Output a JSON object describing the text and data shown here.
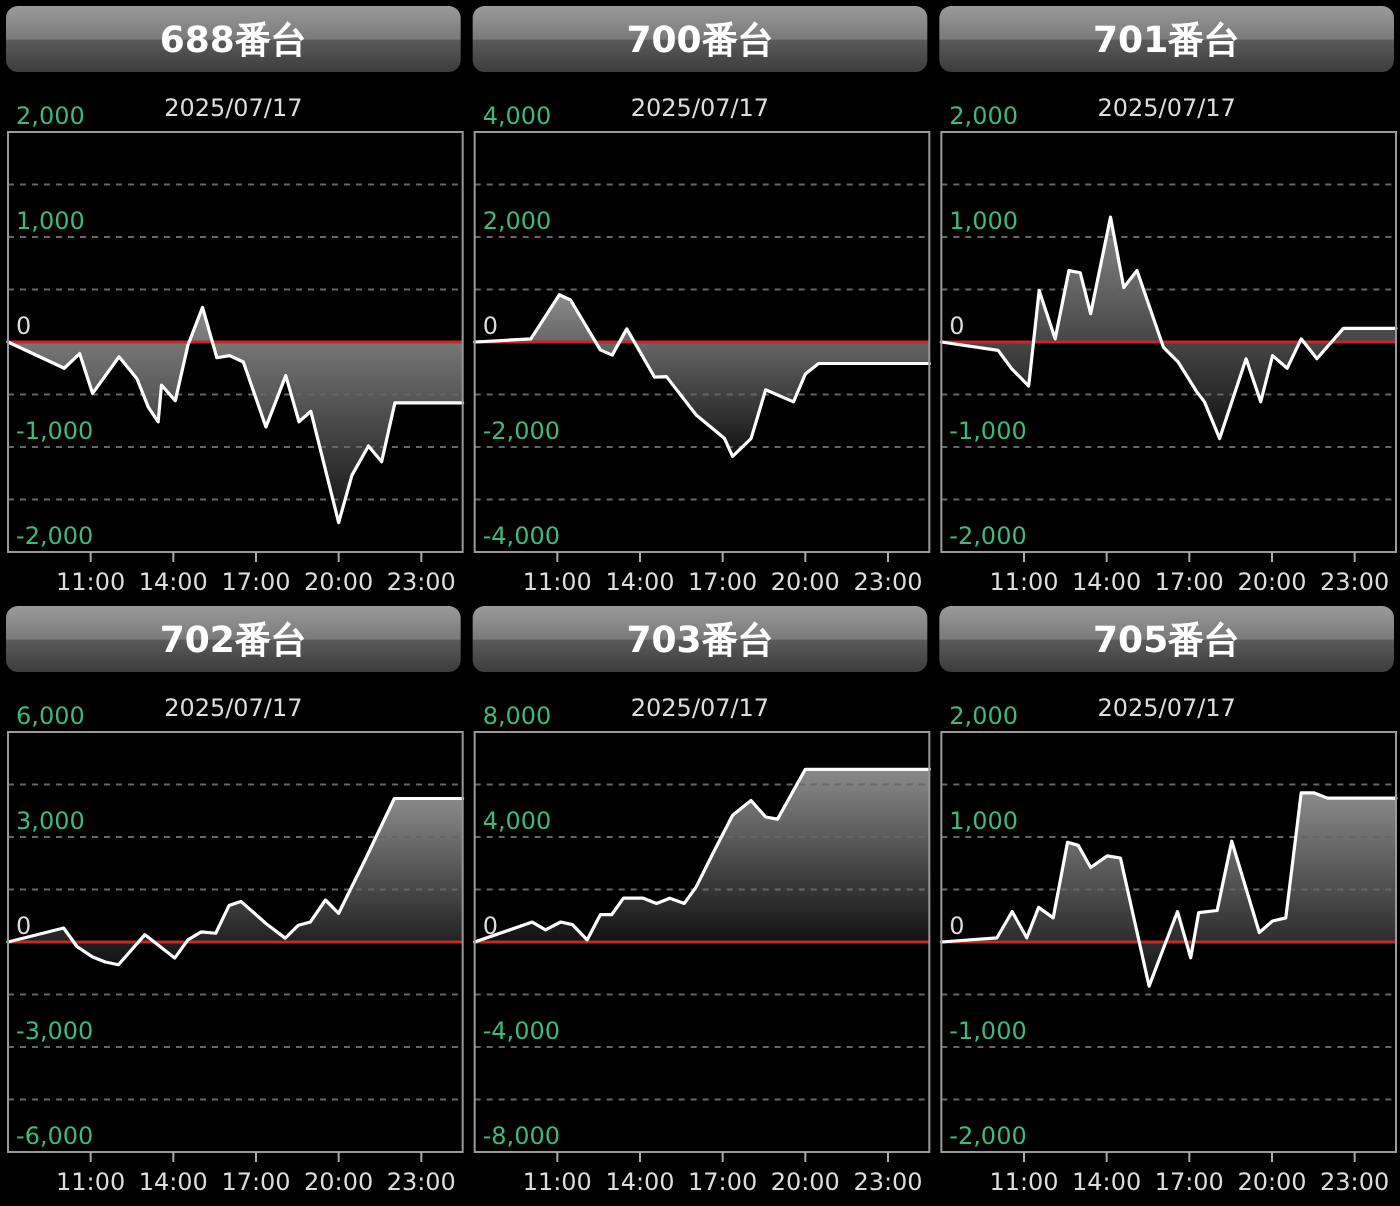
{
  "chart_data": [
    {
      "type": "area",
      "title": "688番台",
      "subtitle": "2025/07/17",
      "color": "#ffffff",
      "grid": "y",
      "xlim": [
        8,
        24.5
      ],
      "xticks": [
        {
          "value": 11,
          "label": "11:00"
        },
        {
          "value": 14,
          "label": "14:00"
        },
        {
          "value": 17,
          "label": "17:00"
        },
        {
          "value": 20,
          "label": "20:00"
        },
        {
          "value": 23,
          "label": "23:00"
        }
      ],
      "ylim": [
        -2000,
        2000
      ],
      "yticks": [
        {
          "value": 2000,
          "label": "2,000"
        },
        {
          "value": 1500,
          "label": null
        },
        {
          "value": 1000,
          "label": "1,000"
        },
        {
          "value": 500,
          "label": null
        },
        {
          "value": 0,
          "label": "0"
        },
        {
          "value": -500,
          "label": null
        },
        {
          "value": -1000,
          "label": "-1,000"
        },
        {
          "value": -1500,
          "label": null
        },
        {
          "value": -2000,
          "label": "-2,000"
        }
      ],
      "ref_lines": [
        {
          "axis": "y",
          "value": 0,
          "color": "#c62828"
        }
      ],
      "x": [
        8,
        10.04,
        10.6,
        11.07,
        12.03,
        12.68,
        13.09,
        13.45,
        13.57,
        14.07,
        14.53,
        15.06,
        15.58,
        16.04,
        16.54,
        17.36,
        18.08,
        18.56,
        18.99,
        20.0,
        20.48,
        21.08,
        21.56,
        22.04,
        24.5
      ],
      "values": [
        0,
        -250,
        -110,
        -490,
        -140,
        -350,
        -620,
        -760,
        -410,
        -560,
        -30,
        330,
        -150,
        -130,
        -190,
        -810,
        -320,
        -760,
        -660,
        -1720,
        -1270,
        -990,
        -1140,
        -580,
        -580
      ]
    },
    {
      "type": "area",
      "title": "700番台",
      "subtitle": "2025/07/17",
      "color": "#ffffff",
      "grid": "y",
      "xlim": [
        8,
        24.5
      ],
      "xticks": [
        {
          "value": 11,
          "label": "11:00"
        },
        {
          "value": 14,
          "label": "14:00"
        },
        {
          "value": 17,
          "label": "17:00"
        },
        {
          "value": 20,
          "label": "20:00"
        },
        {
          "value": 23,
          "label": "23:00"
        }
      ],
      "ylim": [
        -4000,
        4000
      ],
      "yticks": [
        {
          "value": 4000,
          "label": "4,000"
        },
        {
          "value": 3000,
          "label": null
        },
        {
          "value": 2000,
          "label": "2,000"
        },
        {
          "value": 1000,
          "label": null
        },
        {
          "value": 0,
          "label": "0"
        },
        {
          "value": -1000,
          "label": null
        },
        {
          "value": -2000,
          "label": "-2,000"
        },
        {
          "value": -3000,
          "label": null
        },
        {
          "value": -4000,
          "label": "-4,000"
        }
      ],
      "ref_lines": [
        {
          "axis": "y",
          "value": 0,
          "color": "#c62828"
        }
      ],
      "x": [
        8,
        10.04,
        11.07,
        11.48,
        12.56,
        12.99,
        13.52,
        14.53,
        14.96,
        16.04,
        17.07,
        17.36,
        18.03,
        18.56,
        19.57,
        20.0,
        20.48,
        24.5
      ],
      "values": [
        0,
        60,
        900,
        800,
        -150,
        -250,
        250,
        -670,
        -660,
        -1390,
        -1840,
        -2180,
        -1840,
        -910,
        -1140,
        -610,
        -410,
        -410
      ]
    },
    {
      "type": "area",
      "title": "701番台",
      "subtitle": "2025/07/17",
      "color": "#ffffff",
      "grid": "y",
      "xlim": [
        8,
        24.5
      ],
      "xticks": [
        {
          "value": 11,
          "label": "11:00"
        },
        {
          "value": 14,
          "label": "14:00"
        },
        {
          "value": 17,
          "label": "17:00"
        },
        {
          "value": 20,
          "label": "20:00"
        },
        {
          "value": 23,
          "label": "23:00"
        }
      ],
      "ylim": [
        -2000,
        2000
      ],
      "yticks": [
        {
          "value": 2000,
          "label": "2,000"
        },
        {
          "value": 1500,
          "label": null
        },
        {
          "value": 1000,
          "label": "1,000"
        },
        {
          "value": 500,
          "label": null
        },
        {
          "value": 0,
          "label": "0"
        },
        {
          "value": -500,
          "label": null
        },
        {
          "value": -1000,
          "label": "-1,000"
        },
        {
          "value": -1500,
          "label": null
        },
        {
          "value": -2000,
          "label": "-2,000"
        }
      ],
      "ref_lines": [
        {
          "axis": "y",
          "value": 0,
          "color": "#c62828"
        }
      ],
      "x": [
        8,
        10.06,
        10.54,
        11.17,
        11.55,
        12.13,
        12.63,
        13.04,
        13.42,
        14.14,
        14.62,
        15.1,
        16.06,
        16.59,
        17.26,
        17.55,
        18.1,
        19.06,
        19.59,
        20.02,
        20.55,
        21.06,
        21.63,
        22.59,
        24.5
      ],
      "values": [
        0,
        -80,
        -250,
        -420,
        490,
        30,
        680,
        660,
        270,
        1190,
        520,
        680,
        -50,
        -190,
        -470,
        -570,
        -920,
        -160,
        -570,
        -130,
        -250,
        30,
        -160,
        130,
        130
      ]
    },
    {
      "type": "area",
      "title": "702番台",
      "subtitle": "2025/07/17",
      "color": "#ffffff",
      "grid": "y",
      "xlim": [
        8,
        24.5
      ],
      "xticks": [
        {
          "value": 11,
          "label": "11:00"
        },
        {
          "value": 14,
          "label": "14:00"
        },
        {
          "value": 17,
          "label": "17:00"
        },
        {
          "value": 20,
          "label": "20:00"
        },
        {
          "value": 23,
          "label": "23:00"
        }
      ],
      "ylim": [
        -6000,
        6000
      ],
      "yticks": [
        {
          "value": 6000,
          "label": "6,000"
        },
        {
          "value": 4500,
          "label": null
        },
        {
          "value": 3000,
          "label": "3,000"
        },
        {
          "value": 1500,
          "label": null
        },
        {
          "value": 0,
          "label": "0"
        },
        {
          "value": -1500,
          "label": null
        },
        {
          "value": -3000,
          "label": "-3,000"
        },
        {
          "value": -4500,
          "label": null
        },
        {
          "value": -6000,
          "label": "-6,000"
        }
      ],
      "ref_lines": [
        {
          "axis": "y",
          "value": 0,
          "color": "#c62828"
        }
      ],
      "x": [
        8,
        10.02,
        10.5,
        11.05,
        11.53,
        12.01,
        12.97,
        14.05,
        14.53,
        15.01,
        15.54,
        16.02,
        16.45,
        17.36,
        18.06,
        18.54,
        18.97,
        19.52,
        20.0,
        21.01,
        22.02,
        24.5
      ],
      "values": [
        0,
        400,
        -130,
        -420,
        -570,
        -650,
        210,
        -460,
        60,
        290,
        250,
        1040,
        1160,
        530,
        110,
        480,
        570,
        1200,
        820,
        2430,
        4100,
        4100
      ]
    },
    {
      "type": "area",
      "title": "703番台",
      "subtitle": "2025/07/17",
      "color": "#ffffff",
      "grid": "y",
      "xlim": [
        8,
        24.5
      ],
      "xticks": [
        {
          "value": 11,
          "label": "11:00"
        },
        {
          "value": 14,
          "label": "14:00"
        },
        {
          "value": 17,
          "label": "17:00"
        },
        {
          "value": 20,
          "label": "20:00"
        },
        {
          "value": 23,
          "label": "23:00"
        }
      ],
      "ylim": [
        -8000,
        8000
      ],
      "yticks": [
        {
          "value": 8000,
          "label": "8,000"
        },
        {
          "value": 6000,
          "label": null
        },
        {
          "value": 4000,
          "label": "4,000"
        },
        {
          "value": 2000,
          "label": null
        },
        {
          "value": 0,
          "label": "0"
        },
        {
          "value": -2000,
          "label": null
        },
        {
          "value": -4000,
          "label": "-4,000"
        },
        {
          "value": -6000,
          "label": null
        },
        {
          "value": -8000,
          "label": "-8,000"
        }
      ],
      "ref_lines": [
        {
          "axis": "y",
          "value": 0,
          "color": "#c62828"
        }
      ],
      "x": [
        8,
        10.09,
        10.57,
        11.12,
        11.55,
        12.08,
        12.56,
        12.97,
        13.4,
        14.12,
        14.6,
        15.08,
        15.61,
        16.04,
        16.64,
        17.36,
        18.03,
        18.56,
        18.99,
        20.0,
        24.5
      ],
      "values": [
        0,
        760,
        460,
        760,
        660,
        80,
        1040,
        1040,
        1670,
        1670,
        1470,
        1670,
        1470,
        2100,
        3360,
        4830,
        5390,
        4760,
        4680,
        6580,
        6580
      ]
    },
    {
      "type": "area",
      "title": "705番台",
      "subtitle": "2025/07/17",
      "color": "#ffffff",
      "grid": "y",
      "xlim": [
        8,
        24.5
      ],
      "xticks": [
        {
          "value": 11,
          "label": "11:00"
        },
        {
          "value": 14,
          "label": "14:00"
        },
        {
          "value": 17,
          "label": "17:00"
        },
        {
          "value": 20,
          "label": "20:00"
        },
        {
          "value": 23,
          "label": "23:00"
        }
      ],
      "ylim": [
        -2000,
        2000
      ],
      "yticks": [
        {
          "value": 2000,
          "label": "2,000"
        },
        {
          "value": 1500,
          "label": null
        },
        {
          "value": 1000,
          "label": "1,000"
        },
        {
          "value": 500,
          "label": null
        },
        {
          "value": 0,
          "label": "0"
        },
        {
          "value": -500,
          "label": null
        },
        {
          "value": -1000,
          "label": "-1,000"
        },
        {
          "value": -1500,
          "label": null
        },
        {
          "value": -2000,
          "label": "-2,000"
        }
      ],
      "ref_lines": [
        {
          "axis": "y",
          "value": 0,
          "color": "#c62828"
        }
      ],
      "x": [
        8,
        10.02,
        10.57,
        11.1,
        11.53,
        12.06,
        12.58,
        12.97,
        13.42,
        14.02,
        14.5,
        15.54,
        16.57,
        17.05,
        17.34,
        18.01,
        18.54,
        19.54,
        20.02,
        20.5,
        21.06,
        21.54,
        22.01,
        24.5
      ],
      "values": [
        0,
        40,
        290,
        40,
        330,
        230,
        950,
        920,
        710,
        820,
        800,
        -420,
        290,
        -150,
        280,
        300,
        960,
        90,
        200,
        230,
        1420,
        1420,
        1370,
        1370
      ]
    }
  ]
}
